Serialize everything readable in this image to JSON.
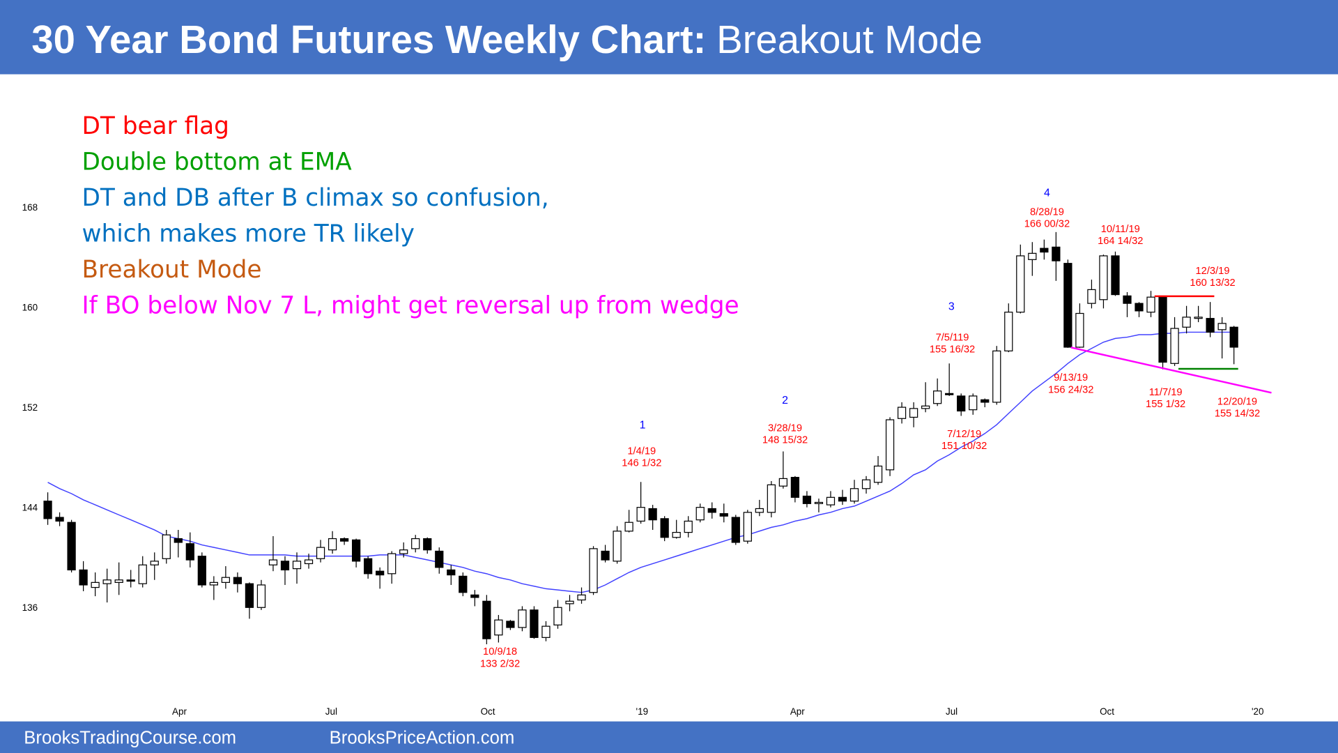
{
  "header": {
    "title_bold": "30 Year Bond Futures Weekly Chart:",
    "title_rest": "Breakout Mode"
  },
  "notes": [
    {
      "text": "DT bear flag",
      "color": "#ff0000"
    },
    {
      "text": "Double bottom at EMA",
      "color": "#00a000"
    },
    {
      "text": "DT and DB after B climax so confusion,",
      "color": "#0070c0"
    },
    {
      "text": "which makes more TR likely",
      "color": "#0070c0"
    },
    {
      "text": "Breakout Mode",
      "color": "#c55a11"
    },
    {
      "text": "If BO below Nov 7 L, might get reversal up from wedge",
      "color": "#ff00ff"
    }
  ],
  "footer": {
    "left": "BrooksTradingCourse.com",
    "right": "BrooksPriceAction.com"
  },
  "chart_data": {
    "type": "candlestick",
    "up_color": "#ffffff",
    "down_color": "#000000",
    "xlim": [
      -1.15,
      104.6
    ],
    "xticks": [
      {
        "value": 11.1,
        "label": "Apr"
      },
      {
        "value": 23.9,
        "label": "Jul"
      },
      {
        "value": 37.1,
        "label": "Oct"
      },
      {
        "value": 50.1,
        "label": "'19"
      },
      {
        "value": 63.2,
        "label": "Apr"
      },
      {
        "value": 76.2,
        "label": "Jul"
      },
      {
        "value": 89.3,
        "label": "Oct"
      },
      {
        "value": 102,
        "label": "'20"
      }
    ],
    "ylim": [
      128.6,
      170.9
    ],
    "yticks": [
      136,
      144,
      152,
      160,
      168
    ],
    "open": [
      144.5,
      143.2,
      142.8,
      139.0,
      137.6,
      137.9,
      138.0,
      138.2,
      137.9,
      139.4,
      139.9,
      141.5,
      141.1,
      140.1,
      137.8,
      138.0,
      138.4,
      137.9,
      136.0,
      139.4,
      139.7,
      139.1,
      139.5,
      139.9,
      140.6,
      141.5,
      141.4,
      139.9,
      138.9,
      138.7,
      140.3,
      140.7,
      141.5,
      140.5,
      139.0,
      138.5,
      137.0,
      136.5,
      133.8,
      134.9,
      134.4,
      135.8,
      133.6,
      134.6,
      136.3,
      136.6,
      137.2,
      140.5,
      139.7,
      142.1,
      142.9,
      143.9,
      143.1,
      141.6,
      142.0,
      143.0,
      143.9,
      143.5,
      143.2,
      141.3,
      143.6,
      143.6,
      145.7,
      146.4,
      144.9,
      144.3,
      144.2,
      144.8,
      144.5,
      145.5,
      146.0,
      147.0,
      151.1,
      151.2,
      151.9,
      152.3,
      153.1,
      152.9,
      151.8,
      152.6,
      152.4,
      156.5,
      159.6,
      163.8,
      164.7,
      164.8,
      163.5,
      156.8,
      160.3,
      160.6,
      164.1,
      160.9,
      160.3,
      159.6,
      160.8,
      155.5,
      158.4,
      159.1,
      159.1,
      158.2,
      158.4
    ],
    "high": [
      145.2,
      143.6,
      143.0,
      139.7,
      138.8,
      139.1,
      139.6,
      139.0,
      140.1,
      140.4,
      142.2,
      142.2,
      142.0,
      140.4,
      138.5,
      139.3,
      138.8,
      138.0,
      138.2,
      141.7,
      140.1,
      140.4,
      140.3,
      141.4,
      142.1,
      141.6,
      141.5,
      140.1,
      139.2,
      140.5,
      141.2,
      141.8,
      141.6,
      140.8,
      139.4,
      138.8,
      137.4,
      137.0,
      135.4,
      135.0,
      136.1,
      136.1,
      134.9,
      136.6,
      137.0,
      137.6,
      140.9,
      141.0,
      142.5,
      143.8,
      146.03,
      144.2,
      143.3,
      143.0,
      143.3,
      144.3,
      144.4,
      144.3,
      143.4,
      143.8,
      144.6,
      146.1,
      148.47,
      146.5,
      145.3,
      144.7,
      145.3,
      145.4,
      146.2,
      146.5,
      148.1,
      151.2,
      152.4,
      152.4,
      154.0,
      154.3,
      155.5,
      153.1,
      153.1,
      152.7,
      156.9,
      160.3,
      165.0,
      165.2,
      165.4,
      166.0,
      163.8,
      160.3,
      162.2,
      164.2,
      164.44,
      161.2,
      160.4,
      161.3,
      160.9,
      159.2,
      160.1,
      160.1,
      160.41,
      159.2,
      158.5
    ],
    "low": [
      142.6,
      142.5,
      138.8,
      137.3,
      136.9,
      136.4,
      137.0,
      137.6,
      137.6,
      138.2,
      139.5,
      140.0,
      139.2,
      137.6,
      136.6,
      137.5,
      137.2,
      135.1,
      135.8,
      138.9,
      137.8,
      137.9,
      139.1,
      139.6,
      140.3,
      141.0,
      139.2,
      138.3,
      137.5,
      137.9,
      140.0,
      140.4,
      140.3,
      138.7,
      137.8,
      136.9,
      136.1,
      133.06,
      133.2,
      134.2,
      134.1,
      133.5,
      133.3,
      134.3,
      135.7,
      136.3,
      137.0,
      139.6,
      139.5,
      142.0,
      142.7,
      142.2,
      141.3,
      141.5,
      141.6,
      142.8,
      143.1,
      142.8,
      141.0,
      141.1,
      143.3,
      143.2,
      145.5,
      144.4,
      144.0,
      143.6,
      144.0,
      144.2,
      144.3,
      145.1,
      145.8,
      146.5,
      150.7,
      150.4,
      151.6,
      152.1,
      152.9,
      151.31,
      151.4,
      152.0,
      152.2,
      156.4,
      159.5,
      162.5,
      163.8,
      162.1,
      156.75,
      156.75,
      159.9,
      159.9,
      160.9,
      159.2,
      159.2,
      159.2,
      155.03,
      155.3,
      157.9,
      158.8,
      157.6,
      155.9,
      155.44
    ],
    "close": [
      143.1,
      142.9,
      139.0,
      137.8,
      138.0,
      138.2,
      138.2,
      138.1,
      139.4,
      139.7,
      141.8,
      141.2,
      139.8,
      137.8,
      138.0,
      138.4,
      137.9,
      136.0,
      137.8,
      139.8,
      139.0,
      139.7,
      139.8,
      140.8,
      141.5,
      141.3,
      139.7,
      138.7,
      138.6,
      140.3,
      140.6,
      141.5,
      140.6,
      139.2,
      138.6,
      137.2,
      136.8,
      133.5,
      135.0,
      134.4,
      135.8,
      133.6,
      134.5,
      136.0,
      136.5,
      137.0,
      140.7,
      139.8,
      142.1,
      142.8,
      144.0,
      143.0,
      141.6,
      142.0,
      142.9,
      144.0,
      143.6,
      143.3,
      141.2,
      143.6,
      143.9,
      145.8,
      146.3,
      144.8,
      144.3,
      144.4,
      144.8,
      144.5,
      145.5,
      146.2,
      147.3,
      151.0,
      152.0,
      151.9,
      152.1,
      153.3,
      153.0,
      151.7,
      152.9,
      152.4,
      156.5,
      159.6,
      164.1,
      164.3,
      164.4,
      163.7,
      156.8,
      159.5,
      161.4,
      164.1,
      161.0,
      160.3,
      159.7,
      160.8,
      155.6,
      158.3,
      159.2,
      159.2,
      158.0,
      158.7,
      156.8
    ],
    "ema": {
      "color": "#4040ff",
      "values": [
        146.0,
        145.5,
        145.1,
        144.6,
        144.2,
        143.8,
        143.4,
        143.0,
        142.6,
        142.2,
        141.7,
        141.5,
        141.3,
        141.0,
        140.8,
        140.6,
        140.4,
        140.2,
        140.2,
        140.2,
        140.2,
        140.1,
        140.1,
        140.1,
        140.1,
        140.1,
        140.1,
        140.1,
        140.2,
        140.2,
        140.2,
        140.0,
        139.8,
        139.6,
        139.4,
        139.2,
        138.9,
        138.7,
        138.4,
        138.2,
        137.9,
        137.7,
        137.5,
        137.4,
        137.3,
        137.2,
        137.4,
        137.8,
        138.3,
        138.8,
        139.2,
        139.5,
        139.8,
        140.1,
        140.4,
        140.7,
        141.0,
        141.3,
        141.6,
        141.8,
        142.1,
        142.4,
        142.6,
        142.9,
        143.1,
        143.4,
        143.6,
        143.9,
        144.1,
        144.5,
        144.9,
        145.3,
        145.9,
        146.6,
        147.0,
        147.7,
        148.2,
        148.8,
        149.3,
        149.9,
        150.6,
        151.5,
        152.4,
        153.3,
        154.0,
        154.7,
        155.5,
        156.2,
        156.7,
        157.2,
        157.5,
        157.6,
        157.8,
        157.8,
        157.9,
        157.9,
        158.0,
        158.0,
        158.0,
        158.0,
        158.0
      ]
    },
    "wave_labels": [
      {
        "text": "1",
        "color": "#0000ff"
      },
      {
        "text": "2",
        "color": "#0000ff"
      },
      {
        "text": "3",
        "color": "#0000ff"
      },
      {
        "text": "4",
        "color": "#0000ff"
      }
    ],
    "annotations": [
      {
        "lines": [
          "1/4/19",
          "146 1/32"
        ],
        "color": "#ff0000"
      },
      {
        "lines": [
          "3/28/19",
          "148 15/32"
        ],
        "color": "#ff0000"
      },
      {
        "lines": [
          "7/5/119",
          "155 16/32"
        ],
        "color": "#ff0000"
      },
      {
        "lines": [
          "8/28/19",
          "166 00/32"
        ],
        "color": "#ff0000"
      },
      {
        "lines": [
          "10/11/19",
          "164 14/32"
        ],
        "color": "#ff0000"
      },
      {
        "lines": [
          "12/3/19",
          "160 13/32"
        ],
        "color": "#ff0000"
      },
      {
        "lines": [
          "10/9/18",
          "133 2/32"
        ],
        "color": "#ff0000"
      },
      {
        "lines": [
          "7/12/19",
          "151 10/32"
        ],
        "color": "#ff0000"
      },
      {
        "lines": [
          "9/13/19",
          "156 24/32"
        ],
        "color": "#ff0000"
      },
      {
        "lines": [
          "11/7/19",
          "155 1/32"
        ],
        "color": "#ff0000"
      },
      {
        "lines": [
          "12/20/19",
          "155 14/32"
        ],
        "color": "#ff0000"
      }
    ]
  }
}
